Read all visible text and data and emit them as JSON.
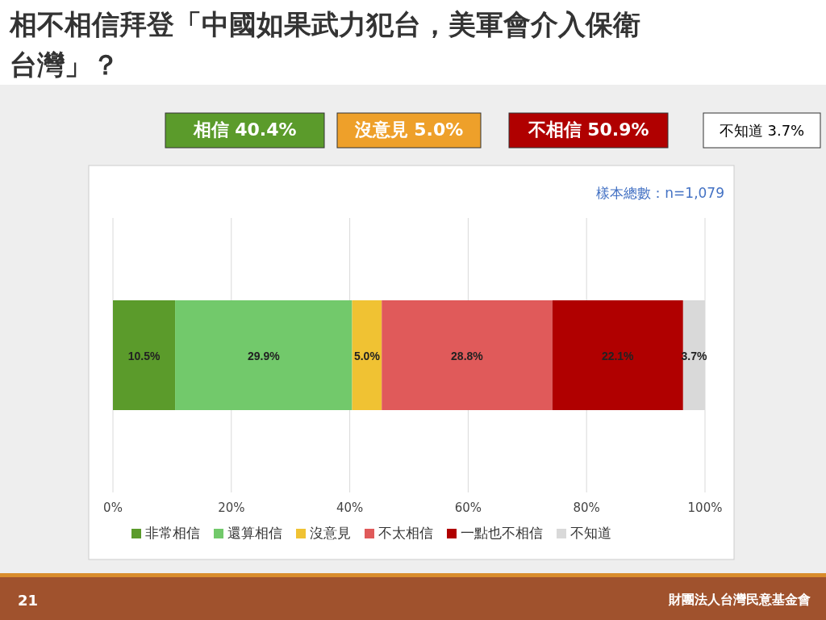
{
  "chart_data": {
    "type": "bar",
    "title": "相不相信拜登「中國如果武力犯台，美軍會介入保衛台灣」？",
    "annotations": [
      "相信 40.4%",
      "沒意見 5.0%",
      "不相信 50.9%",
      "不知道 3.7%",
      "樣本總數：n=1,079",
      "21",
      "財團法人台灣民意基金會"
    ],
    "categories": [
      null
    ],
    "orientation": "horizontal",
    "stacked": true,
    "series": [
      {
        "name": "非常相信",
        "color": "#5b9b2b",
        "values": [
          10.5
        ],
        "value_labels": [
          "10.5%"
        ]
      },
      {
        "name": "還算相信",
        "color": "#72c96b",
        "values": [
          29.9
        ],
        "value_labels": [
          "29.9%"
        ]
      },
      {
        "name": "沒意見",
        "color": "#f0c233",
        "values": [
          5.0
        ],
        "value_labels": [
          "5.0%"
        ]
      },
      {
        "name": "不太相信",
        "color": "#e05a5a",
        "values": [
          28.8
        ],
        "value_labels": [
          "28.8%"
        ]
      },
      {
        "name": "一點也不相信",
        "color": "#b00000",
        "values": [
          22.1
        ],
        "value_labels": [
          "22.1%"
        ]
      },
      {
        "name": "不知道",
        "color": "#d9d9d9",
        "values": [
          3.7
        ],
        "value_labels": [
          "3.7%"
        ]
      }
    ],
    "xlim": [
      0,
      100
    ],
    "xticks": [
      {
        "value": 0,
        "label": "0%"
      },
      {
        "value": 20,
        "label": "20%"
      },
      {
        "value": 40,
        "label": "40%"
      },
      {
        "value": 60,
        "label": "60%"
      },
      {
        "value": 80,
        "label": "80%"
      },
      {
        "value": 100,
        "label": "100%"
      }
    ],
    "grid": "x",
    "legend": "bottom"
  }
}
